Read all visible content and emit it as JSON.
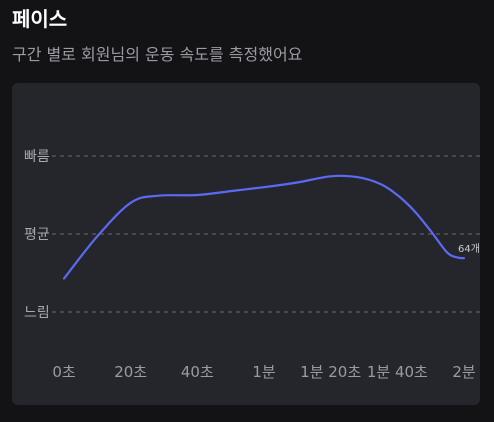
{
  "header": {
    "title": "페이스",
    "subtitle": "구간 별로 회원님의 운동 속도를 측정했어요"
  },
  "colors": {
    "background": "#131316",
    "card": "#25262b",
    "line": "#5b6af2",
    "grid": "#6b6c72"
  },
  "chart_data": {
    "type": "line",
    "x_tick_values": [
      0,
      20,
      40,
      60,
      80,
      100,
      120
    ],
    "x_tick_labels": [
      "0초",
      "20초",
      "40초",
      "1분",
      "1분 20초",
      "1분 40초",
      "2분"
    ],
    "y_tick_values": [
      0,
      1,
      2
    ],
    "y_tick_labels": [
      "느림",
      "평균",
      "빠름"
    ],
    "xlim": [
      0,
      120
    ],
    "ylim": [
      0,
      2
    ],
    "grid": "horizontal dashed",
    "series": [
      {
        "x": [
          0,
          10,
          20,
          28,
          40,
          50,
          60,
          70,
          80,
          88,
          95,
          100,
          105,
          110,
          115,
          118,
          120
        ],
        "y": [
          0.43,
          0.97,
          1.4,
          1.49,
          1.5,
          1.55,
          1.6,
          1.66,
          1.74,
          1.73,
          1.64,
          1.5,
          1.3,
          1.04,
          0.76,
          0.7,
          0.69
        ]
      }
    ],
    "end_label": "64개"
  }
}
